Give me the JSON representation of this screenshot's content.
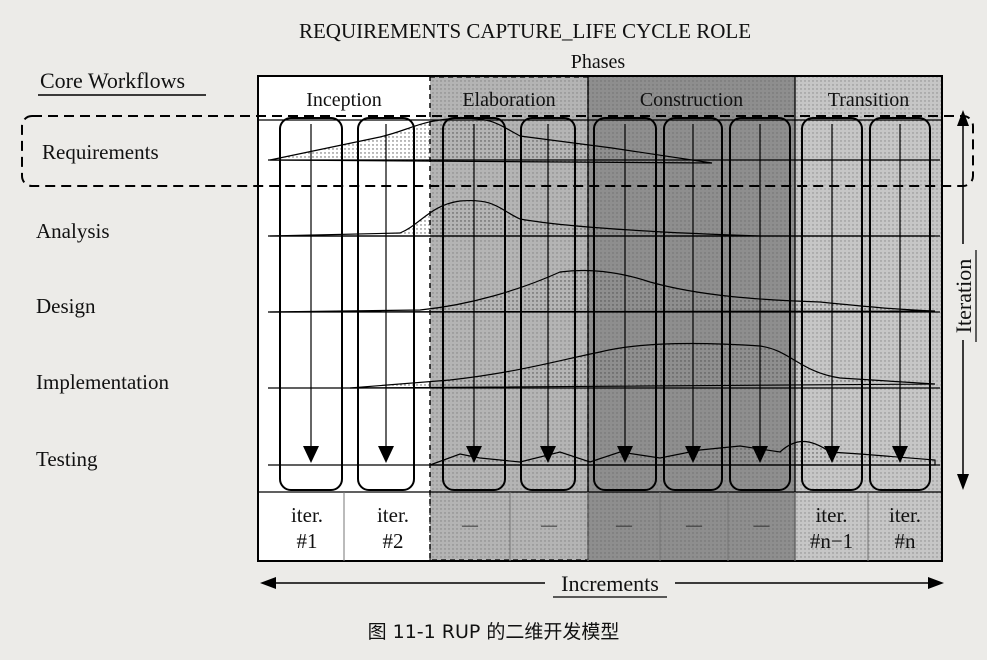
{
  "title": "REQUIREMENTS CAPTURE_LIFE CYCLE ROLE",
  "phases_label": "Phases",
  "core_workflows_label": "Core Workflows",
  "iteration_label": "Iteration",
  "increments_label": "Increments",
  "caption": "图 11-1   RUP 的二维开发模型",
  "phases": [
    {
      "name": "Inception",
      "shade": "#ffffff"
    },
    {
      "name": "Elaboration",
      "shade": "#b4b4b4"
    },
    {
      "name": "Construction",
      "shade": "#8e8e8e"
    },
    {
      "name": "Transition",
      "shade": "#c6c6c6"
    }
  ],
  "workflows": [
    "Requirements",
    "Analysis",
    "Design",
    "Implementation",
    "Testing"
  ],
  "iterations": [
    {
      "label": "iter.\n#1"
    },
    {
      "label": "iter.\n#2"
    },
    {
      "label": "—"
    },
    {
      "label": "—"
    },
    {
      "label": "—"
    },
    {
      "label": "—"
    },
    {
      "label": "—"
    },
    {
      "label": "iter.\n#n−1"
    },
    {
      "label": "iter.\n#n"
    }
  ],
  "highlighted_workflow": "Requirements"
}
